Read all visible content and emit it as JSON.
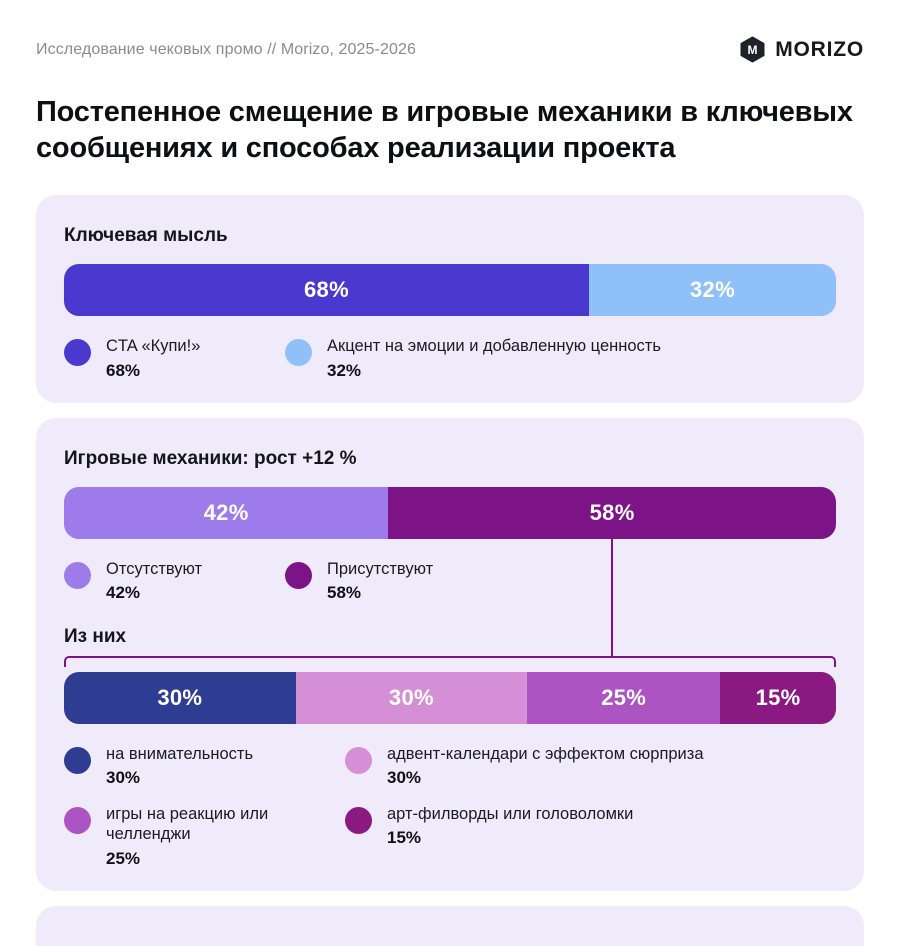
{
  "header": {
    "subtitle": "Исследование чековых промо // Morizo, 2025-2026",
    "brand": "MORIZO"
  },
  "title": "Постепенное смещение в игровые механики в ключевых сообщениях и способах реализации проекта",
  "colors": {
    "card_bg": "#efebfa",
    "connector": "#7c1386",
    "brand_dark": "#212129",
    "muted_text": "#8a8a94"
  },
  "chart_data": [
    {
      "type": "bar",
      "stacked": true,
      "orientation": "horizontal",
      "title": "Ключевая мысль",
      "segments": [
        {
          "label": "CTA «Купи!»",
          "value": 68,
          "display": "68%",
          "color": "#4a38cf"
        },
        {
          "label": "Акцент на эмоции и добавленную ценность",
          "value": 32,
          "display": "32%",
          "color": "#8fc0f8"
        }
      ]
    },
    {
      "type": "bar",
      "stacked": true,
      "orientation": "horizontal",
      "title": "Игровые механики: рост +12 %",
      "segments": [
        {
          "label": "Отсутствуют",
          "value": 42,
          "display": "42%",
          "color": "#9e7bea"
        },
        {
          "label": "Присутствуют",
          "value": 58,
          "display": "58%",
          "color": "#7c1386"
        }
      ],
      "breakdown_title": "Из них",
      "breakdown": [
        {
          "label": "на внимательность",
          "value": 30,
          "display": "30%",
          "color": "#2e3d92"
        },
        {
          "label": "адвент-календари с эффектом сюрприза",
          "value": 30,
          "display": "30%",
          "color": "#d48fd6"
        },
        {
          "label": "игры на реакцию или челленджи",
          "value": 25,
          "display": "25%",
          "color": "#ad54c3"
        },
        {
          "label": "арт-филворды или головоломки",
          "value": 15,
          "display": "15%",
          "color": "#8a1981"
        }
      ]
    }
  ]
}
